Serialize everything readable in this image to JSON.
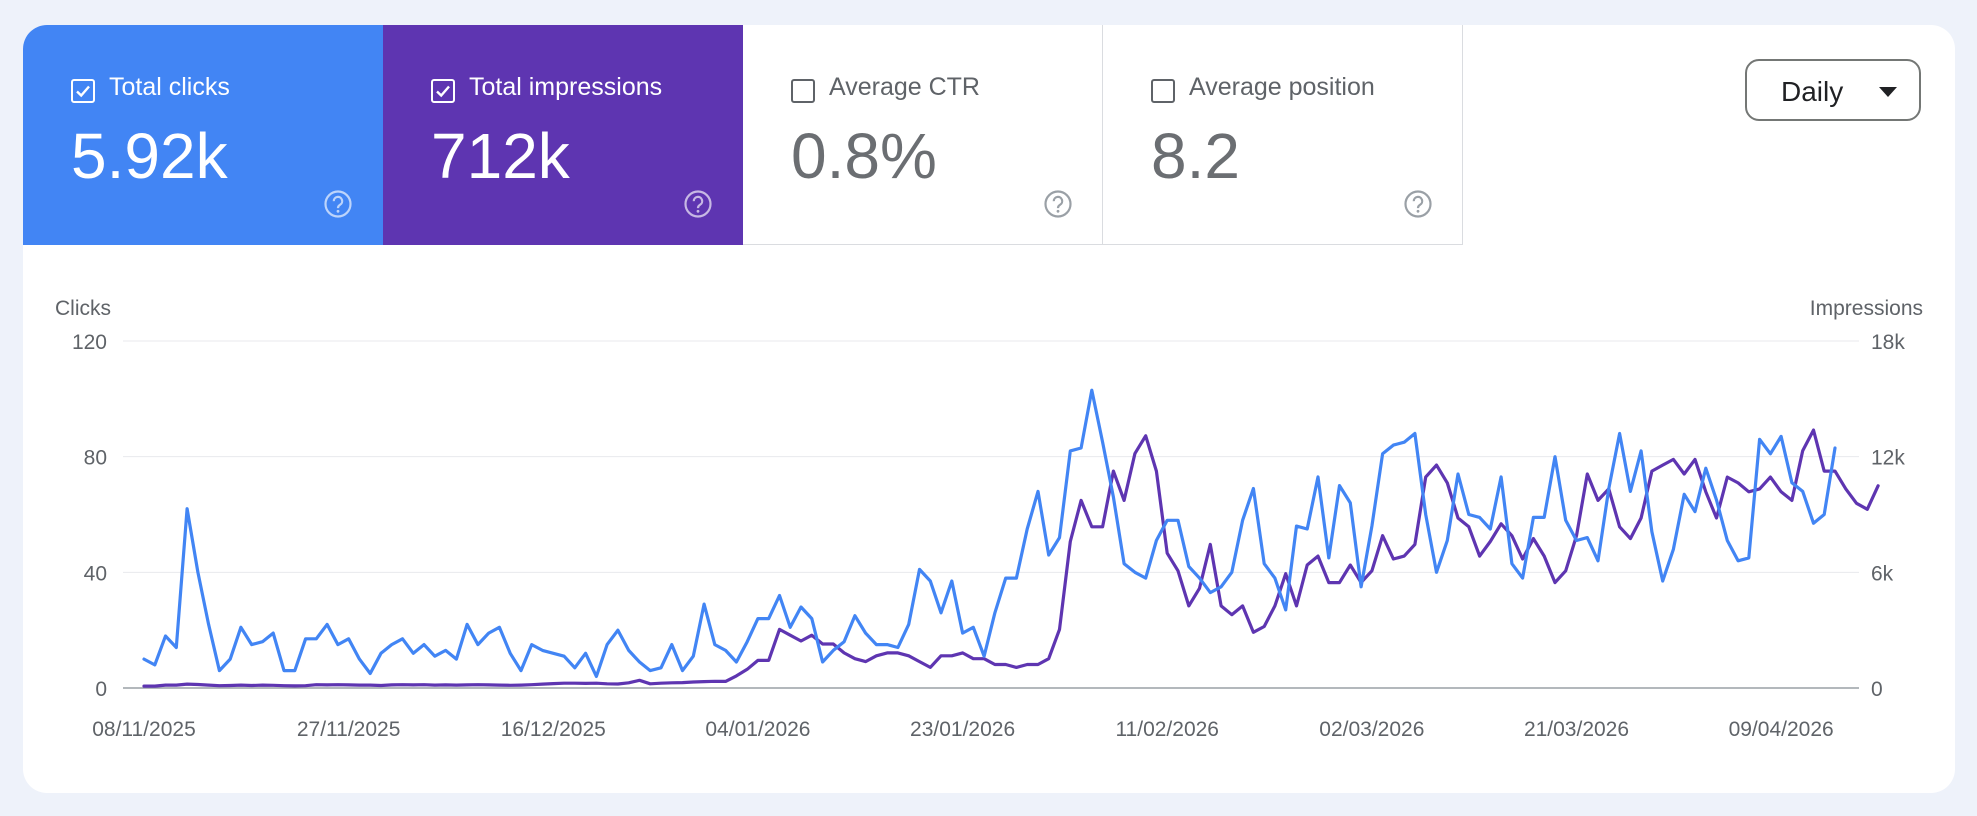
{
  "metrics": [
    {
      "label": "Total clicks",
      "value": "5.92k",
      "checked": true,
      "color": "#4285f4"
    },
    {
      "label": "Total impressions",
      "value": "712k",
      "checked": true,
      "color": "#5e35b1"
    },
    {
      "label": "Average CTR",
      "value": "0.8%",
      "checked": false,
      "color": "#ffffff"
    },
    {
      "label": "Average position",
      "value": "8.2",
      "checked": false,
      "color": "#ffffff"
    }
  ],
  "period_select": {
    "selected": "Daily"
  },
  "icons": {
    "help": "help-circle-icon",
    "dropdown": "caret-down-icon",
    "checkbox": "checkbox-checked-icon"
  },
  "chart_data": {
    "type": "line",
    "xlabel": "",
    "ylabel": "Clicks",
    "y2label": "Impressions",
    "ylim": [
      0,
      120
    ],
    "y2lim": [
      0,
      18000
    ],
    "yticks": [
      "0",
      "40",
      "80",
      "120"
    ],
    "y2ticks": [
      "0",
      "6k",
      "12k",
      "18k"
    ],
    "xticks": [
      "08/11/2025",
      "27/11/2025",
      "16/12/2025",
      "04/01/2026",
      "23/01/2026",
      "11/02/2026",
      "02/03/2026",
      "21/03/2026",
      "09/04/2026"
    ],
    "x_start": "08/11/2025",
    "x_end": "11/04/2026",
    "grid": true,
    "series": [
      {
        "name": "Clicks",
        "axis": "left",
        "color": "#4285f4",
        "values": [
          10,
          8,
          18,
          14,
          62,
          40,
          22,
          6,
          10,
          21,
          15,
          16,
          19,
          6,
          6,
          17,
          17,
          22,
          15,
          17,
          10,
          5,
          12,
          15,
          17,
          12,
          15,
          11,
          13,
          10,
          22,
          15,
          19,
          21,
          12,
          6,
          15,
          13,
          12,
          11,
          7,
          12,
          4,
          15,
          20,
          13,
          9,
          6,
          7,
          15,
          6,
          11,
          29,
          15,
          13,
          9,
          16,
          24,
          24,
          32,
          21,
          28,
          24,
          9,
          13,
          16,
          25,
          19,
          15,
          15,
          14,
          22,
          41,
          37,
          26,
          37,
          19,
          21,
          11,
          26,
          38,
          38,
          55,
          68,
          46,
          52,
          82,
          83,
          103,
          85,
          66,
          43,
          40,
          38,
          51,
          58,
          58,
          42,
          38,
          33,
          35,
          40,
          58,
          69,
          43,
          38,
          27,
          56,
          55,
          73,
          45,
          70,
          64,
          35,
          56,
          81,
          84,
          85,
          88,
          60,
          40,
          51,
          74,
          60,
          59,
          55,
          73,
          43,
          38,
          59,
          59,
          80,
          58,
          51,
          52,
          44,
          69,
          88,
          68,
          82,
          54,
          37,
          48,
          67,
          61,
          76,
          65,
          51,
          44,
          45,
          86,
          81,
          87,
          71,
          68,
          57,
          60,
          83
        ]
      },
      {
        "name": "Impressions",
        "axis": "right",
        "color": "#5e35b1",
        "values": [
          100,
          100,
          150,
          150,
          200,
          180,
          150,
          120,
          130,
          150,
          130,
          150,
          140,
          120,
          110,
          120,
          170,
          160,
          170,
          160,
          150,
          150,
          130,
          160,
          170,
          160,
          170,
          150,
          160,
          150,
          160,
          170,
          160,
          150,
          140,
          150,
          170,
          200,
          230,
          250,
          250,
          240,
          250,
          220,
          210,
          270,
          400,
          220,
          250,
          270,
          280,
          310,
          330,
          350,
          340,
          630,
          970,
          1430,
          1430,
          3040,
          2740,
          2440,
          2740,
          2280,
          2280,
          1820,
          1520,
          1370,
          1670,
          1820,
          1820,
          1670,
          1370,
          1070,
          1670,
          1670,
          1820,
          1520,
          1520,
          1220,
          1220,
          1070,
          1220,
          1220,
          1520,
          3040,
          7600,
          9730,
          8360,
          8360,
          11250,
          9730,
          12160,
          13080,
          11250,
          6990,
          6080,
          4260,
          5170,
          7450,
          4260,
          3800,
          4260,
          2890,
          3190,
          4260,
          5930,
          4260,
          6380,
          6840,
          5470,
          5470,
          6380,
          5470,
          6080,
          7900,
          6690,
          6840,
          7450,
          10940,
          11560,
          10640,
          8820,
          8360,
          6840,
          7600,
          8520,
          7900,
          6690,
          7750,
          6840,
          5470,
          6080,
          7900,
          11100,
          9730,
          10330,
          8360,
          7750,
          8820,
          11250,
          11560,
          11860,
          11100,
          11860,
          10180,
          8820,
          10940,
          10640,
          10180,
          10330,
          10940,
          10180,
          9730,
          12310,
          13380,
          11250,
          11250,
          10330,
          9580,
          9270,
          10490
        ]
      }
    ]
  }
}
